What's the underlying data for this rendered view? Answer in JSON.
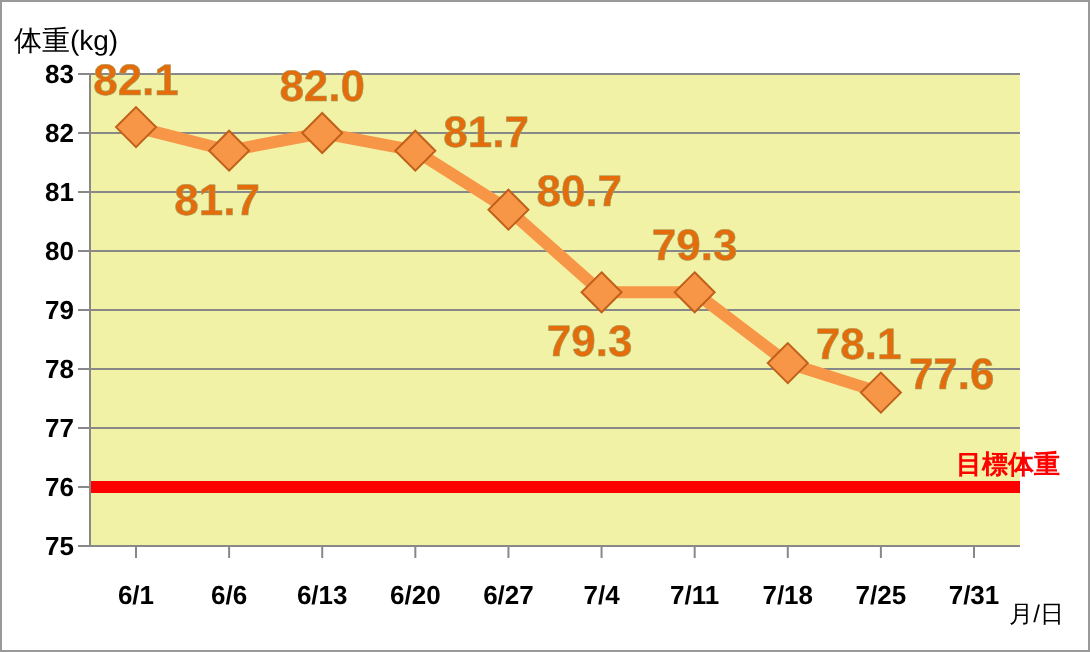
{
  "chart_data": {
    "type": "line",
    "ylabel": "体重(kg)",
    "xlabel": "月/日",
    "categories": [
      "6/1",
      "6/6",
      "6/13",
      "6/20",
      "6/27",
      "7/4",
      "7/11",
      "7/18",
      "7/25",
      "7/31"
    ],
    "series": [
      {
        "color": "#f79646",
        "values": [
          82.1,
          81.7,
          82.0,
          81.7,
          80.7,
          79.3,
          79.3,
          78.1,
          77.6,
          null
        ],
        "value_labels": [
          "82.1",
          "81.7",
          "82.0",
          "81.7",
          "80.7",
          "79.3",
          "79.3",
          "78.1",
          "77.6",
          null
        ]
      }
    ],
    "ylim": [
      75,
      83
    ],
    "yticks": [
      75,
      76,
      77,
      78,
      79,
      80,
      81,
      82,
      83
    ],
    "grid": "y",
    "marker": "diamond",
    "line_style": "solid",
    "legend": false,
    "ref_lines": [
      {
        "axis": "y",
        "value": 76,
        "label": "目標体重",
        "color": "#ff0000"
      }
    ]
  }
}
